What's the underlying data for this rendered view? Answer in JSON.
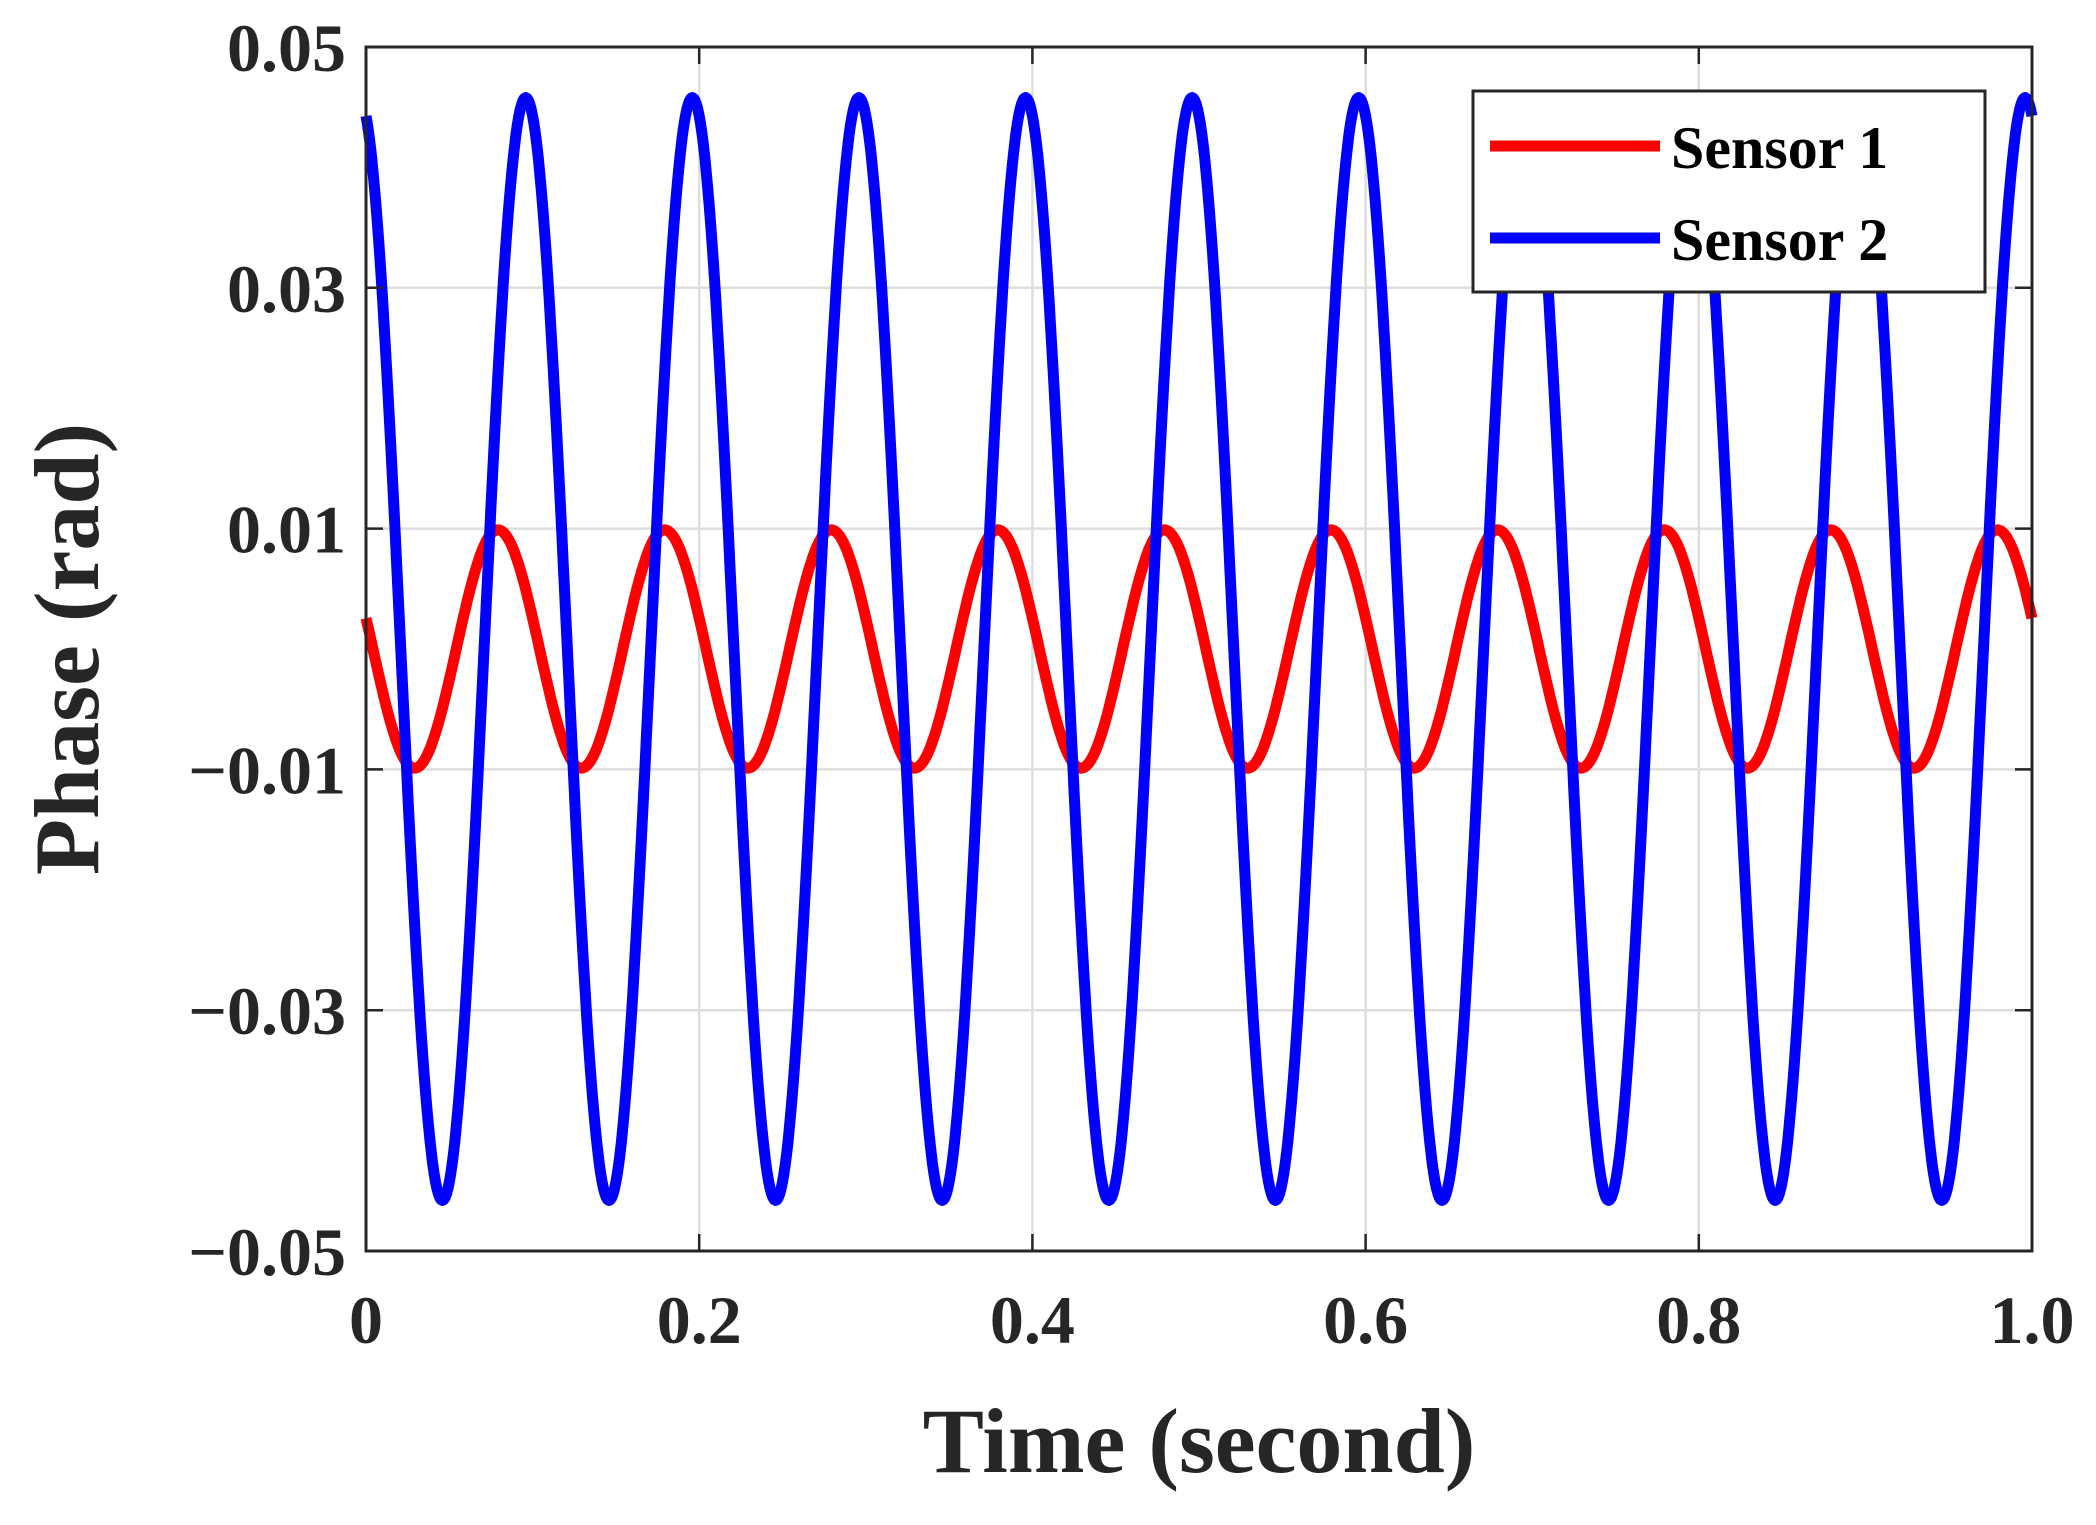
{
  "chart_data": {
    "type": "line",
    "title": "",
    "xlabel": "Time (second)",
    "ylabel": "Phase (rad)",
    "xlim": [
      0,
      1
    ],
    "ylim": [
      -0.05,
      0.05
    ],
    "grid": true,
    "legend_position": "top-right",
    "x_ticks": [
      0,
      0.2,
      0.4,
      0.6,
      0.8,
      1.0
    ],
    "x_tick_labels": [
      "0",
      "0.2",
      "0.4",
      "0.6",
      "0.8",
      "1.0"
    ],
    "y_ticks": [
      0.05,
      0.03,
      0.01,
      -0.01,
      -0.03,
      -0.05
    ],
    "y_tick_labels": [
      "0.05",
      "0.03",
      "0.01",
      "−0.01",
      "−0.03",
      "−0.05"
    ],
    "series": [
      {
        "name": "Sensor 1",
        "color": "#ff0000",
        "model": "sine",
        "amplitude": 0.0099,
        "frequency_hz": 10,
        "phase_rad": 2.88,
        "offset": 0
      },
      {
        "name": "Sensor 2",
        "color": "#0000ff",
        "model": "sine",
        "amplitude": 0.0458,
        "frequency_hz": 10,
        "phase_rad": 1.83,
        "offset": 0
      }
    ]
  }
}
